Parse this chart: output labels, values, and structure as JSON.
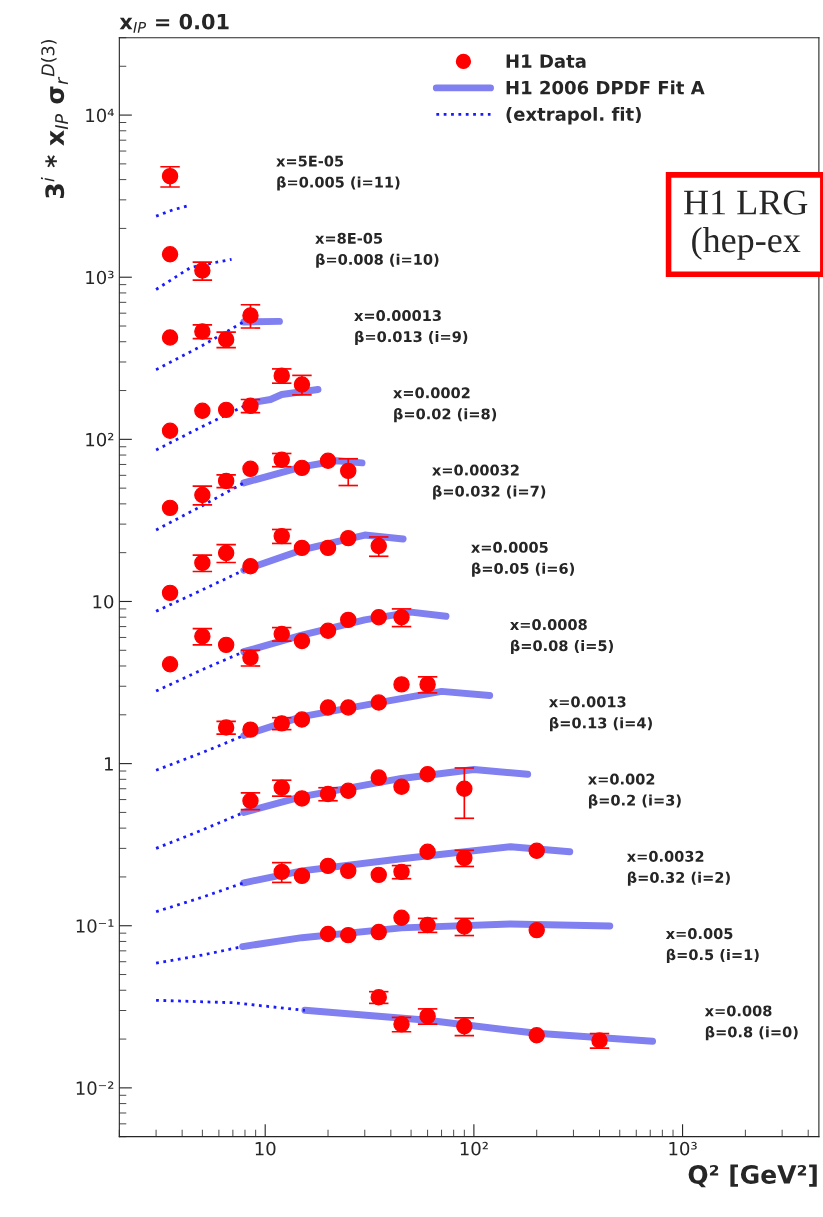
{
  "chart_data": {
    "type": "scatter",
    "title": "x$_{IP}$ = 0.01",
    "xlabel": "Q² [GeV²]",
    "ylabel": "3$^{i}$ * x$_{IP}$ σ$_{r}$$^{D(3)}$",
    "log": "xy",
    "xlim": [
      2,
      4500
    ],
    "ylim": [
      0.005,
      30000
    ],
    "xticks": [
      10,
      {
        "value": 100,
        "label": "10²"
      },
      {
        "value": 1000,
        "label": "10³"
      }
    ],
    "yticks": [
      {
        "value": 0.01,
        "label": "10⁻²"
      },
      {
        "value": 0.1,
        "label": "10⁻¹"
      },
      1,
      10,
      {
        "value": 100,
        "label": "10²"
      },
      {
        "value": 1000,
        "label": "10³"
      },
      {
        "value": 10000,
        "label": "10⁴"
      }
    ],
    "legend": "top right",
    "series": [
      {
        "name": "H1 Data",
        "color": "#ff0000",
        "marker": "circle",
        "x": [
          3.5
        ],
        "values": [
          4200
        ],
        "errors": [
          600
        ]
      },
      {
        "type": "line",
        "name": "H1 2006 DPDF Fit A",
        "color": "#8080f0",
        "line_style": "solid",
        "x": [
          7.9,
          11.7
        ],
        "values": [
          530,
          534
        ]
      },
      {
        "type": "line",
        "name": "(extrapol. fit)",
        "color": "#1a1aff",
        "line_style": "dotted",
        "x": [
          3,
          3.6,
          4.4
        ],
        "values": [
          2380,
          2600,
          2790
        ]
      },
      {
        "color": "#ff0000",
        "marker": "circle",
        "x": [
          3.5,
          5
        ],
        "values": [
          1385,
          1100
        ],
        "errors": [
          null,
          140
        ]
      },
      {
        "type": "line",
        "color": "#1a1aff",
        "line_style": "dotted",
        "x": [
          3,
          4.4,
          6.9
        ],
        "values": [
          840,
          1150,
          1290
        ]
      },
      {
        "color": "#ff0000",
        "marker": "circle",
        "x": [
          3.5,
          5,
          6.5,
          8.5
        ],
        "values": [
          425,
          463,
          413,
          581
        ],
        "errors": [
          null,
          45,
          45,
          95
        ]
      },
      {
        "type": "line",
        "color": "#1a1aff",
        "line_style": "dotted",
        "x": [
          3,
          5,
          8.1
        ],
        "values": [
          269,
          379,
          541
        ]
      },
      {
        "color": "#ff0000",
        "marker": "circle",
        "x": [
          3.5,
          5,
          6.5,
          8.5,
          12,
          15
        ],
        "values": [
          113,
          150,
          152,
          161,
          247,
          218
        ],
        "errors": [
          null,
          null,
          null,
          15,
          25,
          30
        ]
      },
      {
        "type": "line",
        "color": "#8080f0",
        "line_style": "solid",
        "x": [
          8.5,
          10.6,
          12,
          17.9
        ],
        "values": [
          168,
          176,
          189,
          203
        ]
      },
      {
        "type": "line",
        "color": "#1a1aff",
        "line_style": "dotted",
        "x": [
          3,
          5,
          8.5
        ],
        "values": [
          86,
          120,
          168
        ]
      },
      {
        "color": "#ff0000",
        "marker": "circle",
        "x": [
          3.5,
          5,
          6.5,
          8.5,
          12,
          15,
          20,
          25
        ],
        "values": [
          37.8,
          45.4,
          55.4,
          65.8,
          74.8,
          66.7,
          73.8,
          63.9
        ],
        "errors": [
          null,
          6,
          5,
          null,
          7,
          null,
          null,
          12
        ]
      },
      {
        "type": "line",
        "color": "#8080f0",
        "line_style": "solid",
        "x": [
          7.9,
          15,
          22,
          29.1
        ],
        "values": [
          53.9,
          67.7,
          73.8,
          71.6
        ]
      },
      {
        "type": "line",
        "color": "#1a1aff",
        "line_style": "dotted",
        "x": [
          3,
          5,
          7.9
        ],
        "values": [
          27.6,
          39,
          53.9
        ]
      },
      {
        "color": "#ff0000",
        "marker": "circle",
        "x": [
          3.5,
          5,
          6.5,
          8.5,
          12,
          15,
          20,
          25,
          35
        ],
        "values": [
          11.3,
          17.3,
          19.9,
          16.5,
          25.3,
          21.4,
          21.4,
          24.6,
          22.0
        ],
        "errors": [
          null,
          2,
          2.5,
          null,
          2.5,
          null,
          null,
          null,
          3
        ]
      },
      {
        "type": "line",
        "color": "#8080f0",
        "line_style": "solid",
        "x": [
          7.9,
          15,
          30,
          45.8
        ],
        "values": [
          15.6,
          20.8,
          25.7,
          24.3
        ]
      },
      {
        "type": "line",
        "color": "#1a1aff",
        "line_style": "dotted",
        "x": [
          3,
          5,
          7.9
        ],
        "values": [
          8.7,
          11.8,
          15.6
        ]
      },
      {
        "color": "#ff0000",
        "marker": "circle",
        "x": [
          3.5,
          5,
          6.5,
          8.5,
          12,
          15,
          20,
          25,
          35,
          45
        ],
        "values": [
          4.1,
          6.1,
          5.4,
          4.5,
          6.3,
          5.7,
          6.6,
          7.7,
          8.0,
          8.0
        ],
        "errors": [
          null,
          0.7,
          null,
          0.5,
          0.6,
          null,
          null,
          null,
          null,
          1
        ]
      },
      {
        "type": "line",
        "color": "#8080f0",
        "line_style": "solid",
        "x": [
          7.9,
          15,
          30,
          50,
          73.5
        ],
        "values": [
          4.9,
          6.2,
          7.7,
          8.6,
          8.1
        ]
      },
      {
        "type": "line",
        "color": "#1a1aff",
        "line_style": "dotted",
        "x": [
          3,
          5,
          7.9
        ],
        "values": [
          2.8,
          3.8,
          4.9
        ]
      },
      {
        "color": "#ff0000",
        "marker": "circle",
        "x": [
          6.5,
          8.5,
          12,
          15,
          20,
          25,
          35,
          45,
          60
        ],
        "values": [
          1.67,
          1.62,
          1.77,
          1.87,
          2.22,
          2.22,
          2.38,
          3.08,
          3.08
        ],
        "errors": [
          0.15,
          null,
          0.15,
          null,
          null,
          null,
          null,
          null,
          0.35
        ]
      },
      {
        "type": "line",
        "color": "#8080f0",
        "line_style": "solid",
        "x": [
          7.9,
          15,
          35,
          70,
          119
        ],
        "values": [
          1.49,
          1.95,
          2.38,
          2.79,
          2.63
        ]
      },
      {
        "type": "line",
        "color": "#1a1aff",
        "line_style": "dotted",
        "x": [
          3,
          5,
          7.9
        ],
        "values": [
          0.91,
          1.17,
          1.49
        ]
      },
      {
        "color": "#ff0000",
        "marker": "circle",
        "x": [
          8.5,
          12,
          15,
          20,
          25,
          35,
          45,
          60,
          90
        ],
        "values": [
          0.59,
          0.71,
          0.61,
          0.65,
          0.68,
          0.82,
          0.72,
          0.86,
          0.7
        ],
        "errors": [
          0.07,
          0.08,
          null,
          0.06,
          null,
          null,
          null,
          null,
          0.24
        ]
      },
      {
        "type": "line",
        "color": "#8080f0",
        "line_style": "solid",
        "x": [
          7.9,
          15,
          45,
          100,
          181
        ],
        "values": [
          0.5,
          0.625,
          0.81,
          0.92,
          0.86
        ]
      },
      {
        "type": "line",
        "color": "#1a1aff",
        "line_style": "dotted",
        "x": [
          3,
          5,
          7.9
        ],
        "values": [
          0.3,
          0.39,
          0.5
        ]
      },
      {
        "color": "#ff0000",
        "marker": "circle",
        "x": [
          12,
          15,
          20,
          25,
          35,
          45,
          60,
          90,
          200
        ],
        "values": [
          0.215,
          0.203,
          0.234,
          0.218,
          0.206,
          0.215,
          0.286,
          0.262,
          0.29
        ],
        "errors": [
          0.03,
          null,
          null,
          null,
          null,
          0.02,
          null,
          0.03,
          null
        ]
      },
      {
        "type": "line",
        "color": "#8080f0",
        "line_style": "solid",
        "x": [
          7.9,
          15,
          45,
          150,
          288
        ],
        "values": [
          0.184,
          0.218,
          0.259,
          0.307,
          0.286
        ]
      },
      {
        "type": "line",
        "color": "#1a1aff",
        "line_style": "dotted",
        "x": [
          3,
          5,
          7.9
        ],
        "values": [
          0.122,
          0.15,
          0.184
        ]
      },
      {
        "color": "#ff0000",
        "marker": "circle",
        "x": [
          20,
          25,
          35,
          45,
          60,
          90,
          200
        ],
        "values": [
          0.089,
          0.0875,
          0.0914,
          0.112,
          0.101,
          0.099,
          0.094
        ],
        "errors": [
          null,
          null,
          null,
          null,
          0.01,
          0.012,
          null
        ]
      },
      {
        "type": "line",
        "color": "#8080f0",
        "line_style": "solid",
        "x": [
          7.8,
          15,
          45,
          150,
          448
        ],
        "values": [
          0.0744,
          0.0844,
          0.097,
          0.1025,
          0.0996
        ]
      },
      {
        "type": "line",
        "color": "#1a1aff",
        "line_style": "dotted",
        "x": [
          3,
          5,
          7.8
        ],
        "values": [
          0.0588,
          0.066,
          0.0744
        ]
      },
      {
        "color": "#ff0000",
        "marker": "circle",
        "x": [
          35,
          45,
          60,
          90,
          200,
          400
        ],
        "values": [
          0.0362,
          0.0247,
          0.0277,
          0.024,
          0.0211,
          0.0196
        ],
        "errors": [
          0.003,
          0.0025,
          0.003,
          0.003,
          null,
          0.002
        ]
      },
      {
        "type": "line",
        "color": "#8080f0",
        "line_style": "solid",
        "x": [
          15.5,
          60,
          200,
          718
        ],
        "values": [
          0.0301,
          0.0261,
          0.0217,
          0.0194
        ]
      },
      {
        "type": "line",
        "color": "#1a1aff",
        "line_style": "dotted",
        "x": [
          3,
          7,
          15.5
        ],
        "values": [
          0.0347,
          0.0335,
          0.0301
        ]
      }
    ],
    "annotations": [
      "x=5E-05\nβ=0.005 (i=11)",
      "x=8E-05\nβ=0.008 (i=10)",
      "x=0.00013\nβ=0.013 (i=9)",
      "x=0.0002\nβ=0.02 (i=8)",
      "x=0.00032\nβ=0.032 (i=7)",
      "x=0.0005\nβ=0.05 (i=6)",
      "x=0.0008\nβ=0.08 (i=5)",
      "x=0.0013\nβ=0.13 (i=4)",
      "x=0.002\nβ=0.2 (i=3)",
      "x=0.0032\nβ=0.32 (i=2)",
      "x=0.005\nβ=0.5 (i=1)",
      "x=0.008\nβ=0.8 (i=0)",
      "H1 LRG\n(hep-ex"
    ]
  }
}
